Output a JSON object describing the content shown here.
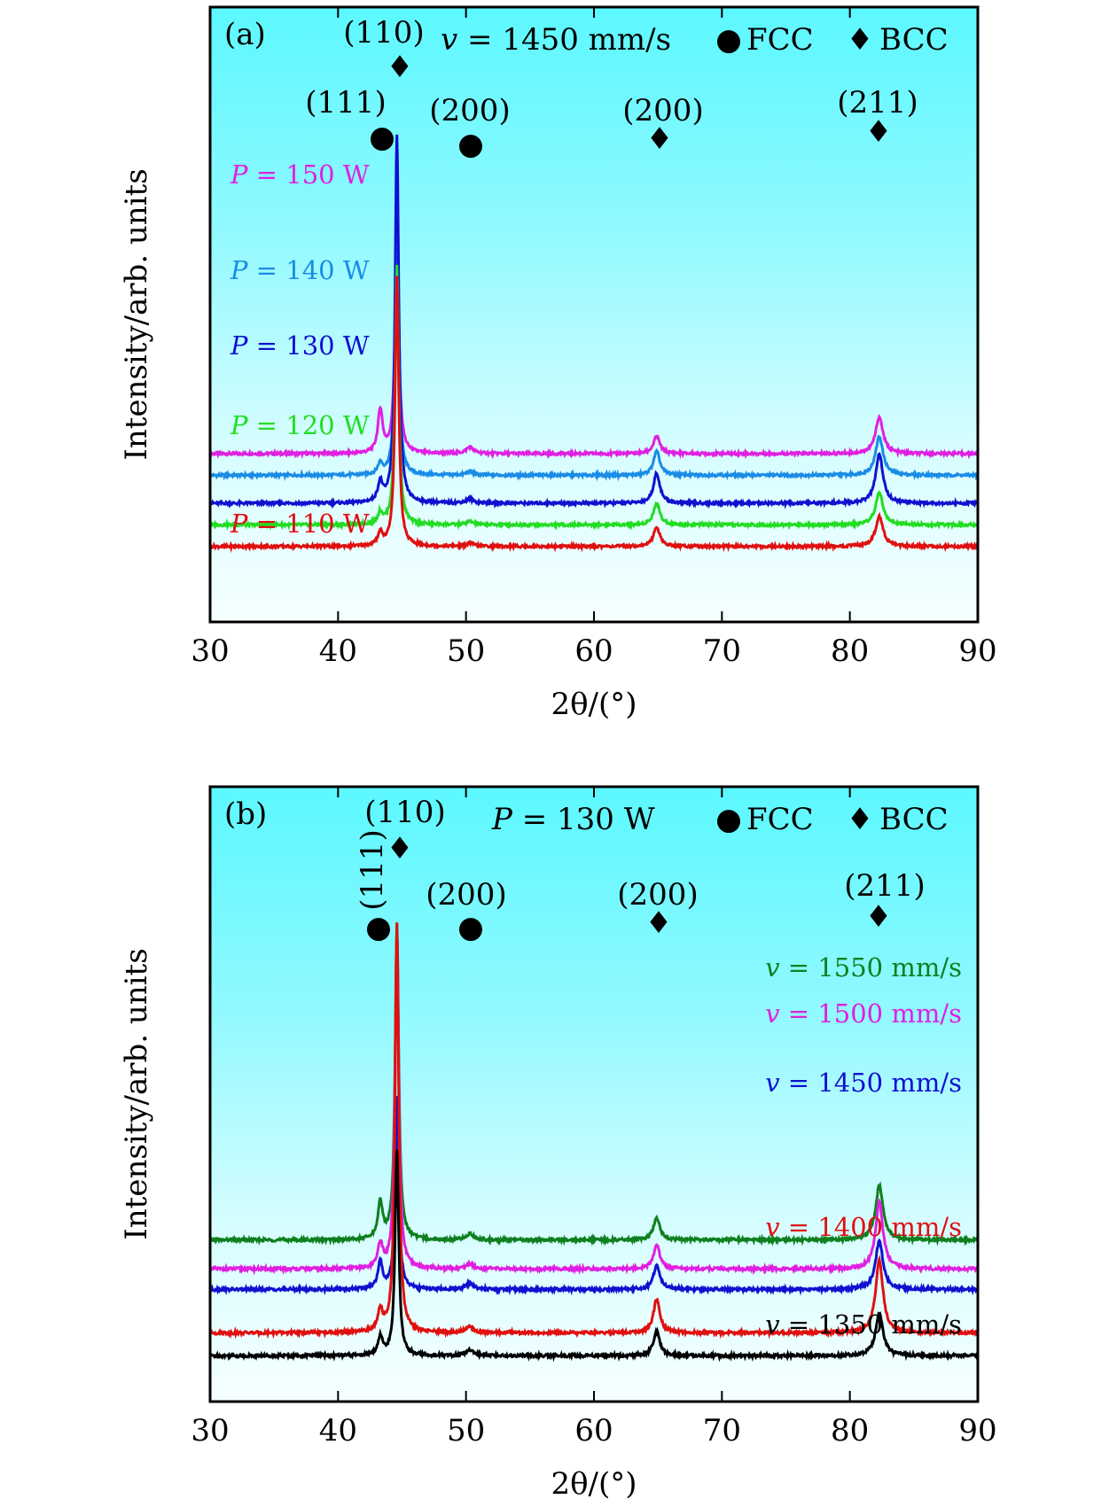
{
  "chart_data": [
    {
      "type": "line",
      "panel_label": "(a)",
      "title": "v = 1450 mm/s",
      "condition": {
        "var": "v",
        "eq": " = ",
        "val": "1450 mm/s"
      },
      "legend": [
        {
          "symbol": "●",
          "label": "FCC"
        },
        {
          "symbol": "♦",
          "label": "BCC"
        }
      ],
      "xlabel": "2θ/(°)",
      "ylabel": "Intensity/arb. units",
      "xlim": [
        30,
        90
      ],
      "xticks": [
        30,
        40,
        50,
        60,
        70,
        80,
        90
      ],
      "peaks": [
        {
          "label": "(111)",
          "phase": "FCC",
          "x": 43.3
        },
        {
          "label": "(110)",
          "phase": "BCC",
          "x": 44.6
        },
        {
          "label": "(200)",
          "phase": "FCC",
          "x": 50.3
        },
        {
          "label": "(200)",
          "phase": "BCC",
          "x": 64.9
        },
        {
          "label": "(211)",
          "phase": "BCC",
          "x": 82.3
        }
      ],
      "series": [
        {
          "name": "P = 150 W",
          "var": "P",
          "value": "150 W",
          "color": "#e020e0",
          "baseline": 0.76,
          "peaks": [
            0.4,
            2.2,
            0.06,
            0.16,
            0.34,
            0.3
          ],
          "label_x": 38.2
        },
        {
          "name": "P = 140 W",
          "var": "P",
          "value": "140 W",
          "color": "#1a8ce6",
          "baseline": 0.56,
          "peaks": [
            0.1,
            2.3,
            0.03,
            0.22,
            0.36,
            0.33
          ],
          "label_x": 38.2
        },
        {
          "name": "P = 130 W",
          "var": "P",
          "value": "130 W",
          "color": "#1010d0",
          "baseline": 0.3,
          "peaks": [
            0.18,
            3.4,
            0.04,
            0.28,
            0.45,
            0.38
          ],
          "label_x": 38.2
        },
        {
          "name": "P = 120 W",
          "var": "P",
          "value": "120 W",
          "color": "#22dd22",
          "baseline": 0.1,
          "peaks": [
            0.1,
            2.4,
            0.03,
            0.2,
            0.3,
            0.32
          ],
          "label_x": 38.2
        },
        {
          "name": "P = 110 W",
          "var": "P",
          "value": "110 W",
          "color": "#e01010",
          "baseline": -0.1,
          "peaks": [
            0.12,
            2.5,
            0.03,
            0.18,
            0.28,
            0.34
          ],
          "label_x": 38.2
        }
      ]
    },
    {
      "type": "line",
      "panel_label": "(b)",
      "title": "P = 130 W",
      "condition": {
        "var": "P",
        "eq": " = ",
        "val": "130 W"
      },
      "legend": [
        {
          "symbol": "●",
          "label": "FCC"
        },
        {
          "symbol": "♦",
          "label": "BCC"
        }
      ],
      "xlabel": "2θ/(°)",
      "ylabel": "Intensity/arb. units",
      "xlim": [
        30,
        90
      ],
      "xticks": [
        30,
        40,
        50,
        60,
        70,
        80,
        90
      ],
      "peaks": [
        {
          "label": "(111)",
          "phase": "FCC",
          "x": 43.3
        },
        {
          "label": "(110)",
          "phase": "BCC",
          "x": 44.6
        },
        {
          "label": "(200)",
          "phase": "FCC",
          "x": 50.3
        },
        {
          "label": "(200)",
          "phase": "BCC",
          "x": 64.9
        },
        {
          "label": "(211)",
          "phase": "BCC",
          "x": 82.3
        }
      ],
      "series": [
        {
          "name": "v = 1550 mm/s",
          "var": "v",
          "value": "1550 mm/s",
          "color": "#0f7f1f",
          "baseline": 0.84,
          "peaks": [
            0.3,
            2.6,
            0.05,
            0.18,
            0.45,
            0.3
          ],
          "label_x": 89
        },
        {
          "name": "v = 1500 mm/s",
          "var": "v",
          "value": "1500 mm/s",
          "color": "#e020e0",
          "baseline": 0.6,
          "peaks": [
            0.2,
            2.8,
            0.04,
            0.2,
            0.55,
            0.3
          ],
          "label_x": 89
        },
        {
          "name": "v = 1450 mm/s",
          "var": "v",
          "value": "1450 mm/s",
          "color": "#1010d0",
          "baseline": 0.43,
          "peaks": [
            0.22,
            1.6,
            0.05,
            0.2,
            0.4,
            0.28
          ],
          "label_x": 89
        },
        {
          "name": "v = 1400 mm/s",
          "var": "v",
          "value": "1400 mm/s",
          "color": "#e01010",
          "baseline": 0.07,
          "peaks": [
            0.18,
            3.4,
            0.05,
            0.28,
            0.6,
            0.35
          ],
          "label_x": 89
        },
        {
          "name": "v = 1350 mm/s",
          "var": "v",
          "value": "1350 mm/s",
          "color": "#000000",
          "baseline": -0.12,
          "peaks": [
            0.15,
            1.7,
            0.05,
            0.2,
            0.35,
            0.3
          ],
          "label_x": 89
        }
      ]
    }
  ]
}
